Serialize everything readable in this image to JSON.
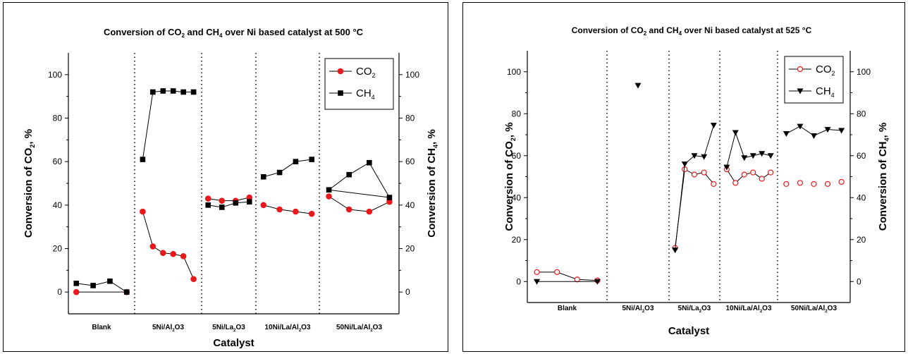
{
  "chart_data": [
    {
      "type": "scatter",
      "title": {
        "pre": "Conversion of CO",
        "s1": "2",
        "mid": " and CH",
        "s2": "4",
        "post": " over Ni based catalyst at 500 °C"
      },
      "xlabel": "Catalyst",
      "ylabel_left": {
        "pre": "Conversion of CO",
        "sub": "2",
        "post": ", %"
      },
      "ylabel_right": {
        "pre": "Conversion of CH",
        "sub": "4",
        "post": ", %"
      },
      "ylim": [
        -10,
        110
      ],
      "yticks": [
        0,
        20,
        40,
        60,
        80,
        100
      ],
      "groups": [
        {
          "label": "Blank",
          "label_sub": ""
        },
        {
          "label": "5Ni/Al",
          "label_sub": "2",
          "label_post": "O3"
        },
        {
          "label": "5Ni/La",
          "label_sub": "2",
          "label_post": "O3"
        },
        {
          "label": "10Ni/La/Al",
          "label_sub": "2",
          "label_post": "O3"
        },
        {
          "label": "50Ni/La/Al",
          "label_sub": "2",
          "label_post": "O3"
        }
      ],
      "legend": {
        "placement": "top-right",
        "entries": [
          {
            "pre": "CO",
            "sub": "2"
          },
          {
            "pre": "CH",
            "sub": "4"
          }
        ]
      },
      "series": [
        {
          "color": "#e8191c",
          "marker": "circle-filled",
          "segments": [
            {
              "group": 0,
              "values": [
                0,
                0
              ]
            },
            {
              "group": 1,
              "values": [
                37,
                21,
                18,
                17.5,
                16.5,
                6
              ]
            },
            {
              "group": 2,
              "values": [
                43,
                42,
                42,
                43.5
              ]
            },
            {
              "group": 3,
              "values": [
                40,
                38,
                37,
                36
              ]
            },
            {
              "group": 4,
              "values": [
                44,
                38,
                37,
                41.5
              ]
            }
          ]
        },
        {
          "color": "#000000",
          "marker": "square-filled",
          "segments": [
            {
              "group": 0,
              "values": [
                4,
                3,
                5,
                0
              ]
            },
            {
              "group": 1,
              "values": [
                61,
                92,
                92.5,
                92.5,
                92,
                92
              ]
            },
            {
              "group": 2,
              "values": [
                40,
                39,
                41,
                41.5
              ]
            },
            {
              "group": 3,
              "values": [
                53,
                55,
                60,
                61
              ]
            },
            {
              "group": 4,
              "values": [
                47,
                54,
                59.5,
                43.5
              ],
              "closed": true
            }
          ]
        }
      ]
    },
    {
      "type": "scatter",
      "title": {
        "pre": "Conversion of CO",
        "s1": "2",
        "mid": " and CH",
        "s2": "4",
        "post": " over Ni based catalyst at 525 °C"
      },
      "xlabel": "Catalyst",
      "ylabel_left": {
        "pre": "Conversion of CO",
        "sub": "2",
        "post": ", %"
      },
      "ylabel_right": {
        "pre": "Conversion of CH",
        "sub": "4",
        "post": ", %"
      },
      "ylim": [
        -10,
        110
      ],
      "yticks": [
        0,
        20,
        40,
        60,
        80,
        100
      ],
      "groups": [
        {
          "label": "Blank",
          "label_sub": ""
        },
        {
          "label": "5Ni/Al",
          "label_sub": "2",
          "label_post": "O3"
        },
        {
          "label": "5Ni/La",
          "label_sub": "2",
          "label_post": "O3"
        },
        {
          "label": "10Ni/La/Al",
          "label_sub": "2",
          "label_post": "O3"
        },
        {
          "label": "50Ni/La/Al",
          "label_sub": "2",
          "label_post": "O3"
        }
      ],
      "legend": {
        "placement": "top-right",
        "entries": [
          {
            "pre": "CO",
            "sub": "2"
          },
          {
            "pre": "CH",
            "sub": "4"
          }
        ]
      },
      "series": [
        {
          "color": "#e8191c",
          "marker": "circle-open",
          "segments": [
            {
              "group": 0,
              "values": [
                4.5,
                4.5,
                1,
                0.5
              ]
            },
            {
              "group": 2,
              "values": [
                16,
                53.5,
                51,
                52,
                46.5
              ]
            },
            {
              "group": 3,
              "values": [
                53.5,
                47,
                51,
                52,
                49,
                52
              ]
            },
            {
              "group": 4,
              "values": [
                46.5,
                47,
                46.5,
                46.5,
                47.5
              ],
              "nolines": true
            }
          ]
        },
        {
          "color": "#000000",
          "marker": "triangle-down",
          "segments": [
            {
              "group": 0,
              "values": [
                0,
                0
              ]
            },
            {
              "group": 1,
              "values": [
                93.5
              ]
            },
            {
              "group": 2,
              "values": [
                15,
                56,
                60,
                59.5,
                74.5
              ]
            },
            {
              "group": 3,
              "values": [
                54.5,
                71,
                59,
                60,
                61,
                60
              ]
            },
            {
              "group": 4,
              "values": [
                70.5,
                74,
                69.5,
                72.5,
                72
              ]
            }
          ]
        }
      ]
    }
  ]
}
